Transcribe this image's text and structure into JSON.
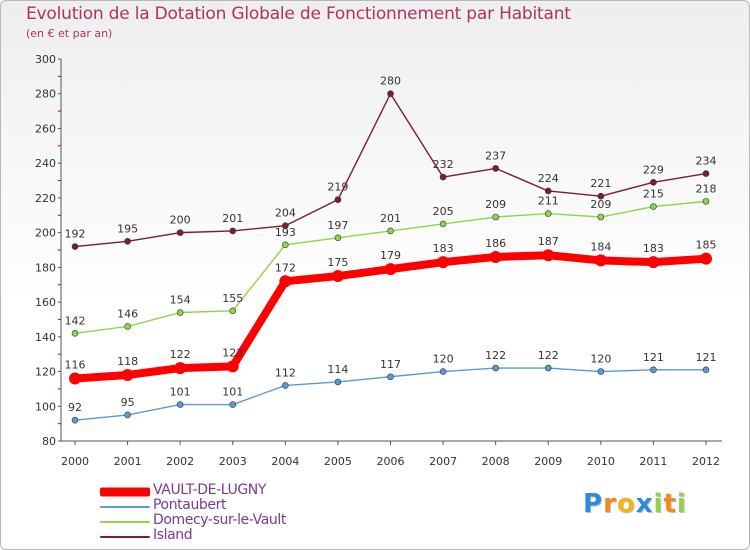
{
  "chart_data": {
    "type": "line",
    "title": "Evolution de la Dotation Globale de Fonctionnement par Habitant",
    "subtitle": "(en € et par an)",
    "xlabel": "",
    "ylabel": "",
    "ylim": [
      80,
      300
    ],
    "yticks": [
      80,
      100,
      120,
      140,
      160,
      180,
      200,
      220,
      240,
      260,
      280,
      300
    ],
    "categories": [
      "2000",
      "2001",
      "2002",
      "2003",
      "2004",
      "2005",
      "2006",
      "2007",
      "2008",
      "2009",
      "2010",
      "2011",
      "2012"
    ],
    "grid": false,
    "legend_position": "bottom-left",
    "series": [
      {
        "name": "Island",
        "color": "#7a1f2b",
        "values": [
          192,
          195,
          200,
          201,
          204,
          219,
          280,
          232,
          237,
          224,
          221,
          229,
          234
        ]
      },
      {
        "name": "Domecy-sur-le-Vault",
        "color": "#8fd34f",
        "values": [
          142,
          146,
          154,
          155,
          193,
          197,
          201,
          205,
          209,
          211,
          209,
          215,
          218
        ]
      },
      {
        "name": "Pontaubert",
        "color": "#5b9bd5",
        "values": [
          92,
          95,
          101,
          101,
          112,
          114,
          117,
          120,
          122,
          122,
          120,
          121,
          121
        ]
      },
      {
        "name": "VAULT-DE-LUGNY",
        "color": "#ff0000",
        "values": [
          116,
          118,
          122,
          123,
          172,
          175,
          179,
          183,
          186,
          187,
          184,
          183,
          185
        ]
      }
    ],
    "legend": [
      {
        "name": "VAULT-DE-LUGNY",
        "color": "#ff0000",
        "text_color": "#7b3a8c"
      },
      {
        "name": "Pontaubert",
        "color": "#5b9bd5",
        "text_color": "#7b3a8c"
      },
      {
        "name": "Domecy-sur-le-Vault",
        "color": "#8fd34f",
        "text_color": "#7b3a8c"
      },
      {
        "name": "Island",
        "color": "#7a1f2b",
        "text_color": "#7b3a8c"
      }
    ]
  },
  "logo": {
    "letters": [
      "P",
      "r",
      "o",
      "x",
      "i",
      "t",
      "i"
    ],
    "colors": [
      "#2e8bd8",
      "#f08a1c",
      "#f0b51c",
      "#2e8bd8",
      "#8fd34f",
      "#f08a1c",
      "#8fd34f"
    ]
  }
}
